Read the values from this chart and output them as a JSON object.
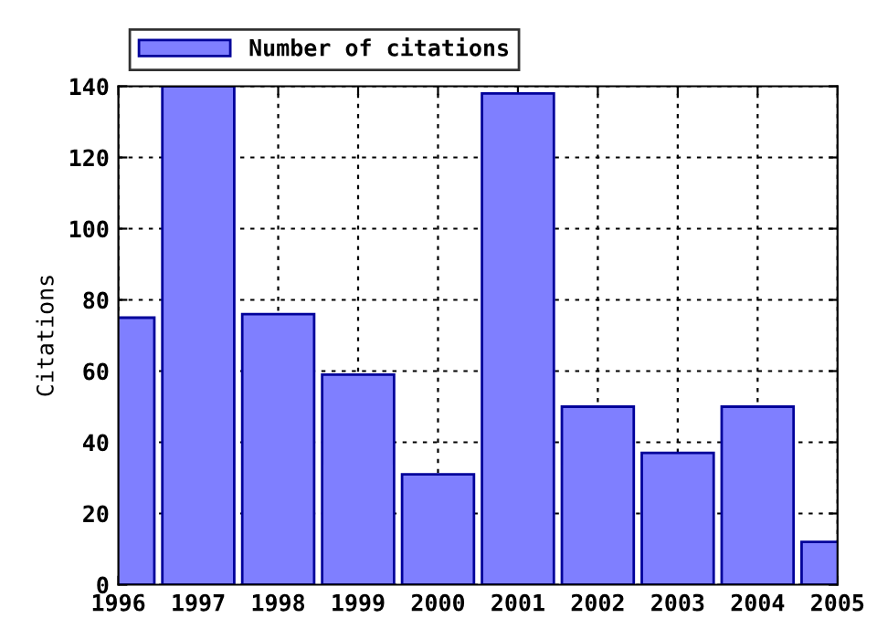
{
  "chart_data": {
    "type": "bar",
    "ylabel": "Citations",
    "x": [
      1996,
      1997,
      1998,
      1999,
      2000,
      2001,
      2002,
      2003,
      2004,
      2005
    ],
    "series": [
      {
        "name": "Number of citations",
        "color": "#7f7fff",
        "values": [
          75,
          140,
          76,
          59,
          31,
          138,
          50,
          37,
          50,
          12
        ]
      }
    ],
    "xlim": [
      1996,
      2005
    ],
    "xticks": [
      1996,
      1997,
      1998,
      1999,
      2000,
      2001,
      2002,
      2003,
      2004,
      2005
    ],
    "ylim": [
      0,
      140
    ],
    "yticks": [
      0,
      20,
      40,
      60,
      80,
      100,
      120,
      140
    ],
    "grid": true,
    "legend": "top"
  }
}
